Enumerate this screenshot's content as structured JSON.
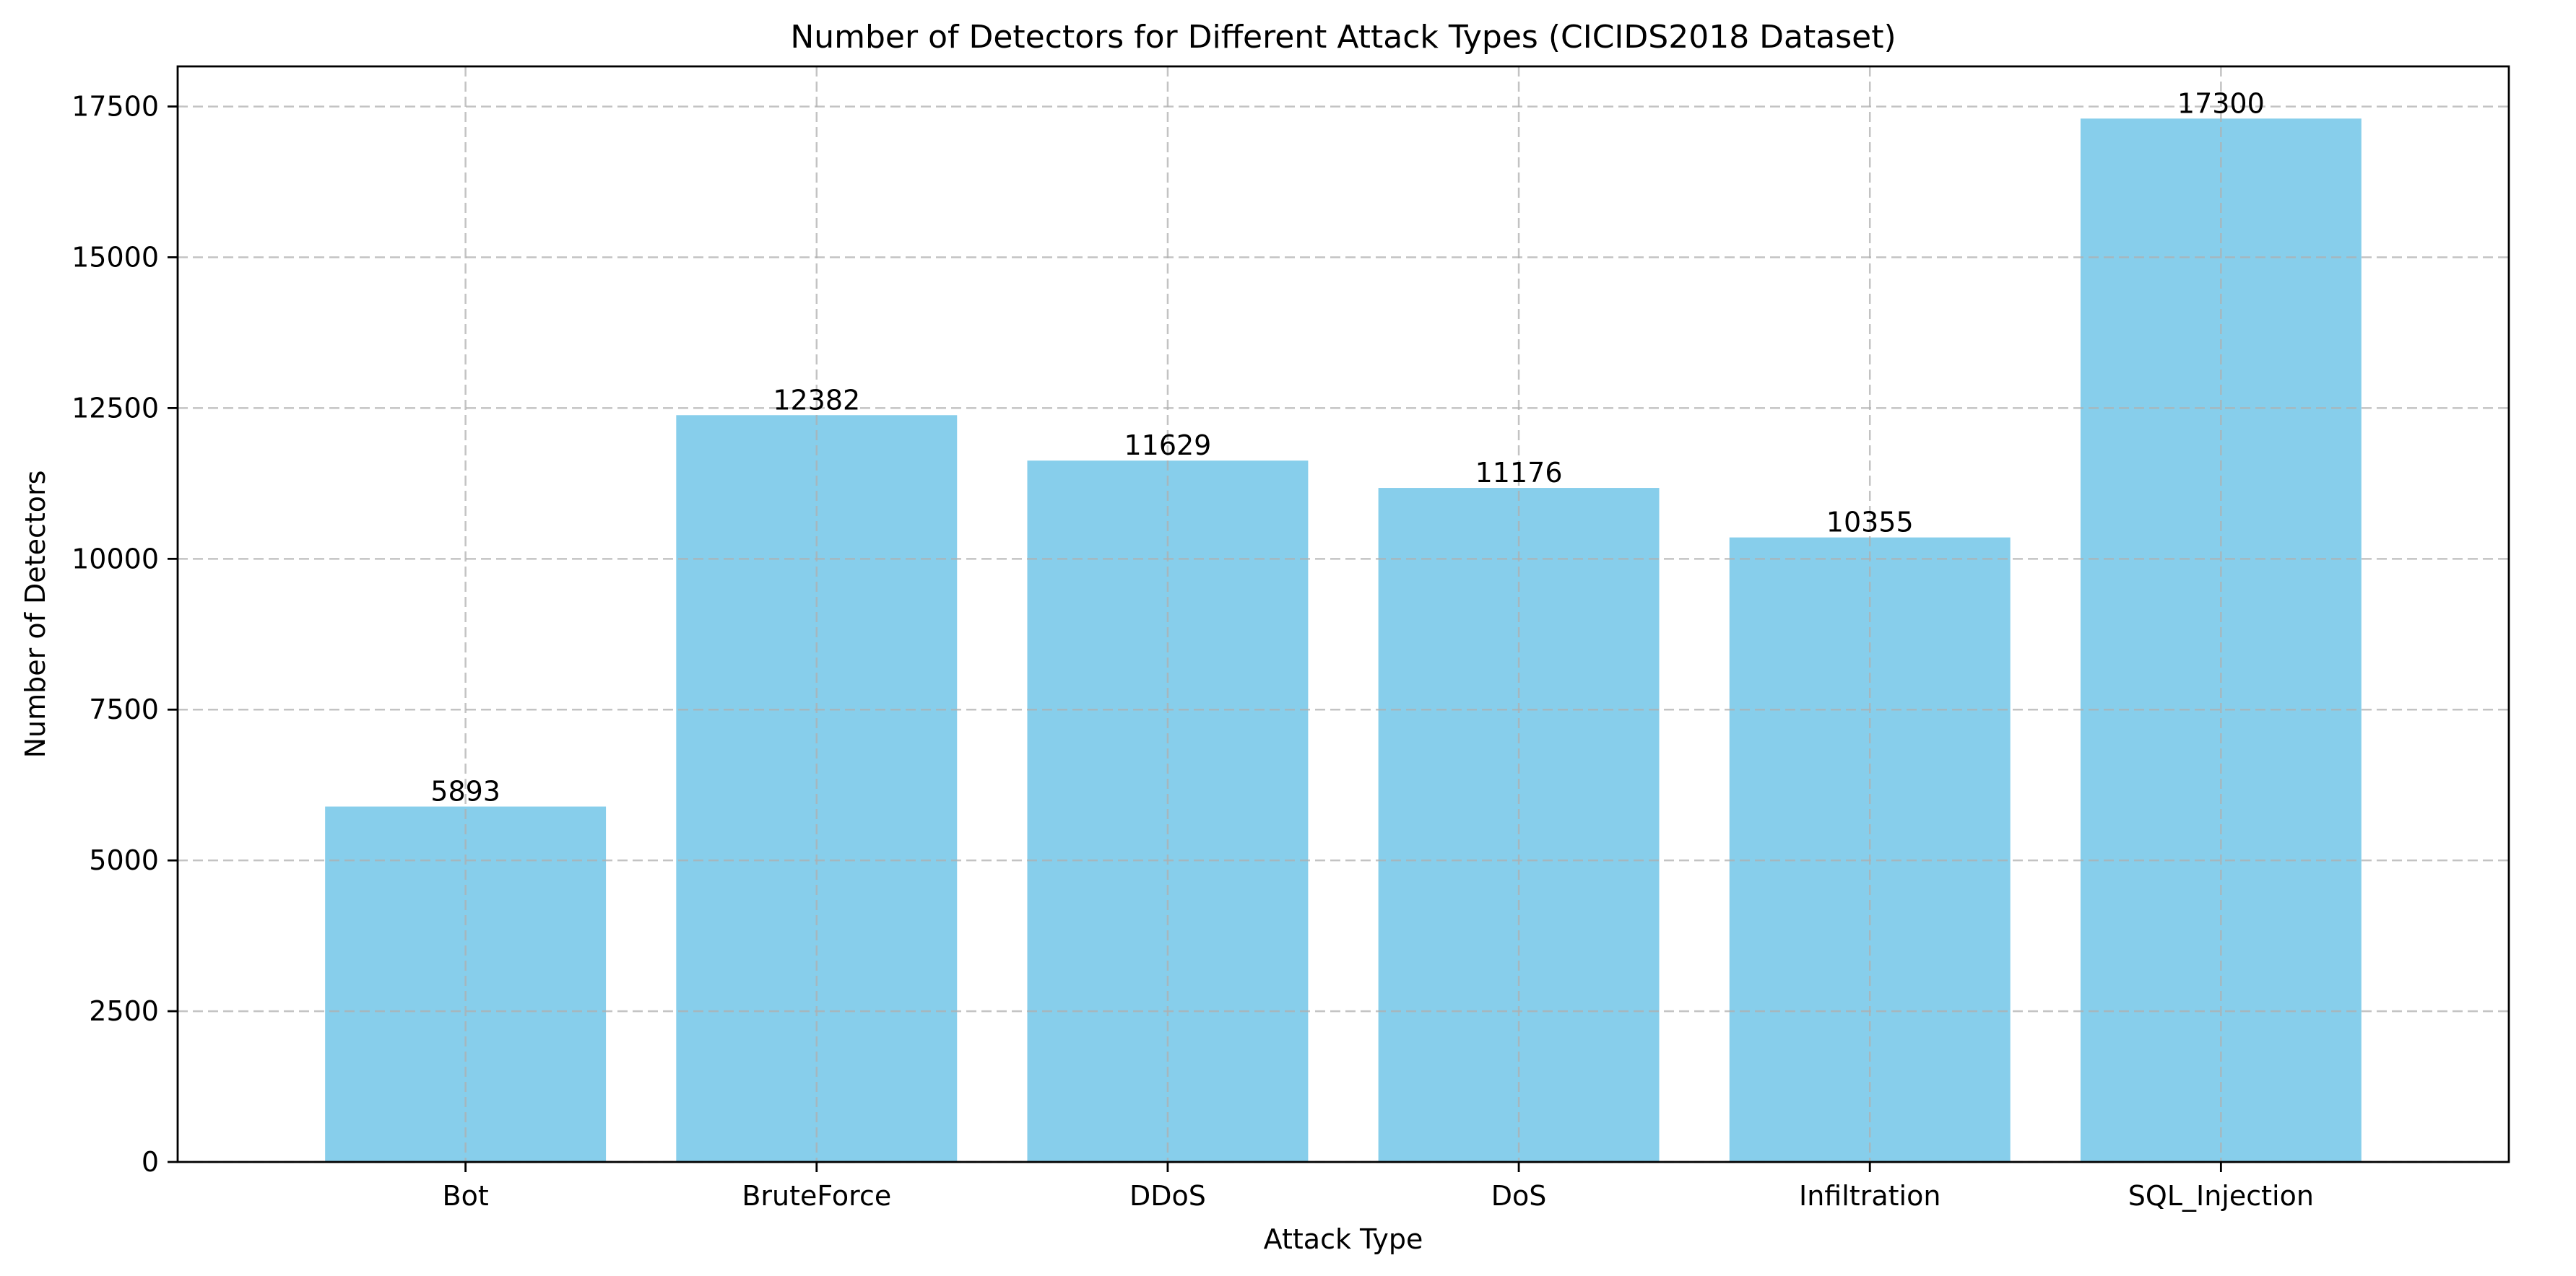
{
  "chart_data": {
    "type": "bar",
    "title": "Number of Detectors for Different Attack Types (CICIDS2018 Dataset)",
    "xlabel": "Attack Type",
    "ylabel": "Number of Detectors",
    "categories": [
      "Bot",
      "BruteForce",
      "DDoS",
      "DoS",
      "Infiltration",
      "SQL_Injection"
    ],
    "values": [
      5893,
      12382,
      11629,
      11176,
      10355,
      17300
    ],
    "data_labels": [
      "5893",
      "12382",
      "11629",
      "11176",
      "10355",
      "17300"
    ],
    "ylim": [
      0,
      18165
    ],
    "yticks": [
      0,
      2500,
      5000,
      7500,
      10000,
      12500,
      15000,
      17500
    ],
    "ytick_labels": [
      "0",
      "2500",
      "5000",
      "7500",
      "10000",
      "12500",
      "15000",
      "17500"
    ],
    "grid": true,
    "bar_color": "#87CEEB"
  }
}
